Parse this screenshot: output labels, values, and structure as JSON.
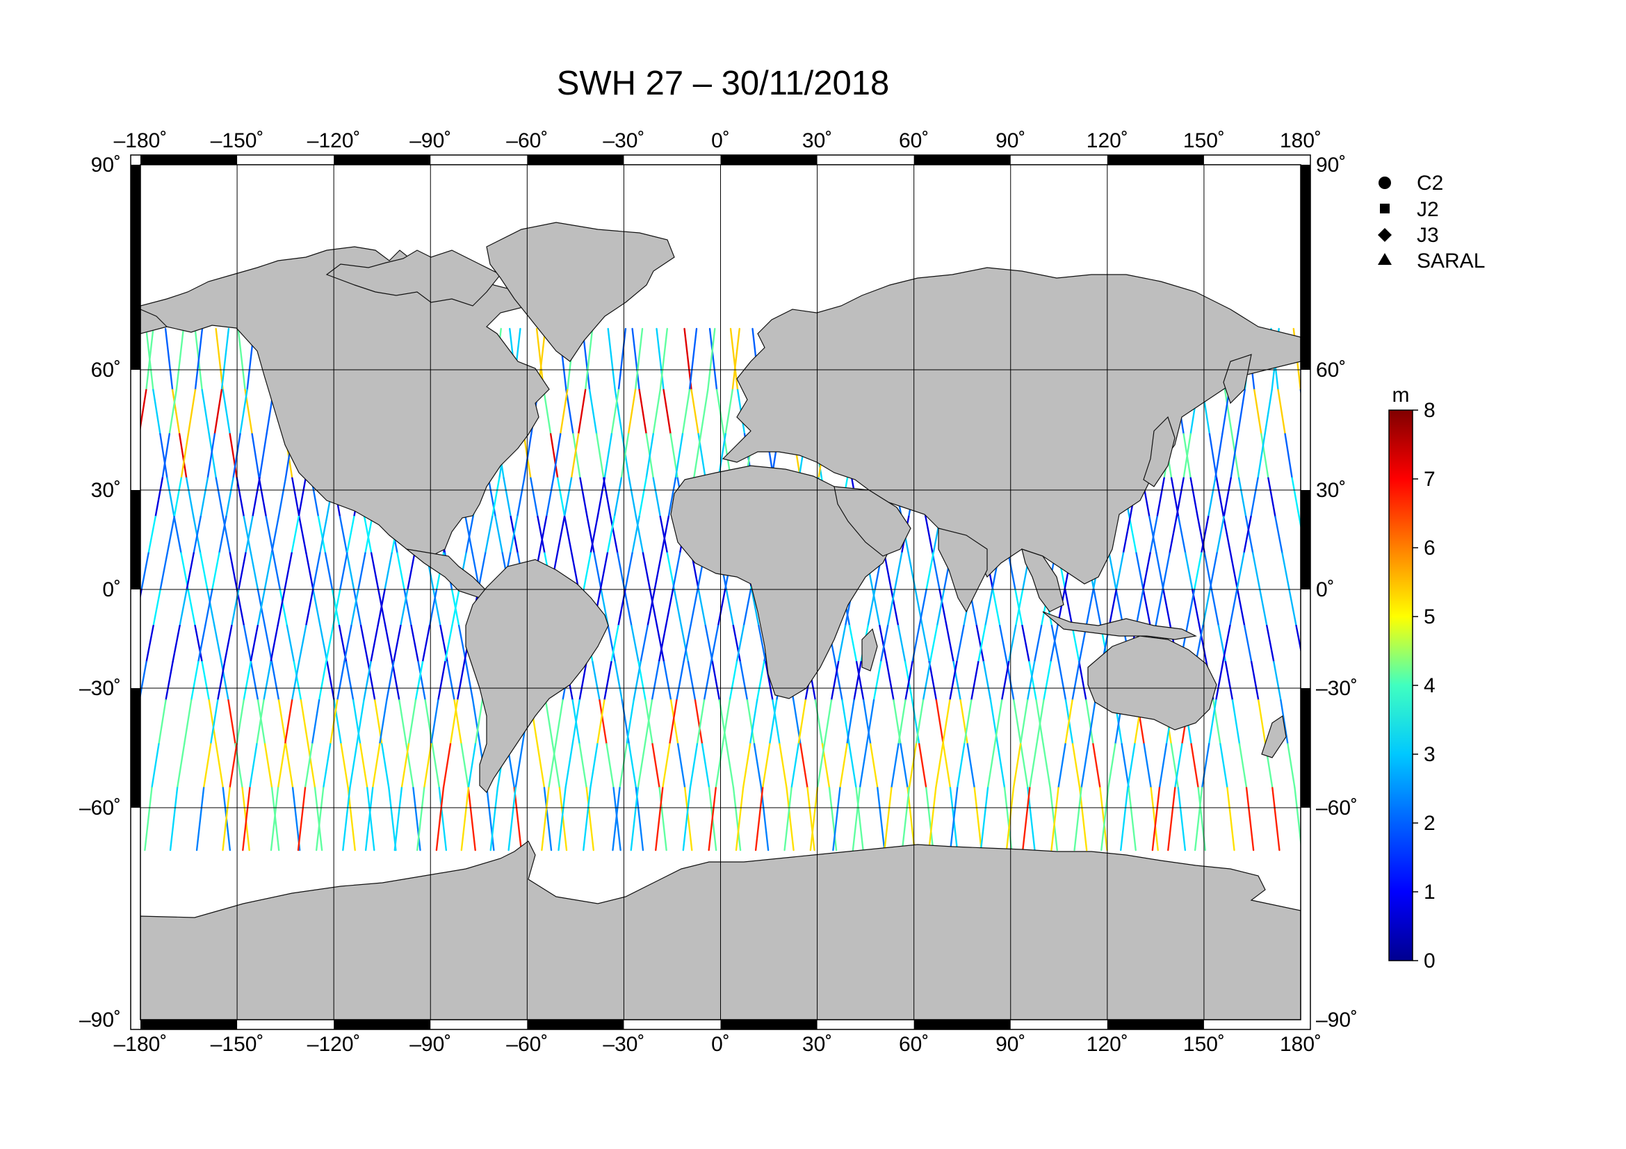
{
  "map": {
    "title": "SWH 27 – 30/11/2018",
    "lon_labels": [
      "–180˚",
      "–150˚",
      "–120˚",
      "–90˚",
      "–60˚",
      "–30˚",
      "0˚",
      "30˚",
      "60˚",
      "90˚",
      "120˚",
      "150˚",
      "180˚"
    ],
    "lat_labels": [
      "90˚",
      "60˚",
      "30˚",
      "0˚",
      "–30˚",
      "–60˚",
      "–90˚"
    ],
    "projection": "Mercator, Antarctic band compressed to -90",
    "land_color": "#bebebe",
    "ocean_color": "#ffffff"
  },
  "legend": {
    "items": [
      {
        "label": "C2",
        "marker": "circle"
      },
      {
        "label": "J2",
        "marker": "square"
      },
      {
        "label": "J3",
        "marker": "diamond"
      },
      {
        "label": "SARAL",
        "marker": "triangle"
      }
    ]
  },
  "colorbar": {
    "unit": "m",
    "min": 0,
    "max": 8,
    "tick_labels": [
      "0",
      "1",
      "2",
      "3",
      "4",
      "5",
      "6",
      "7",
      "8"
    ],
    "colormap": "jet",
    "colors": [
      "#00008f",
      "#0000ff",
      "#0080ff",
      "#00ffff",
      "#80ff80",
      "#ffff00",
      "#ff8000",
      "#ff0000",
      "#800000"
    ]
  }
}
